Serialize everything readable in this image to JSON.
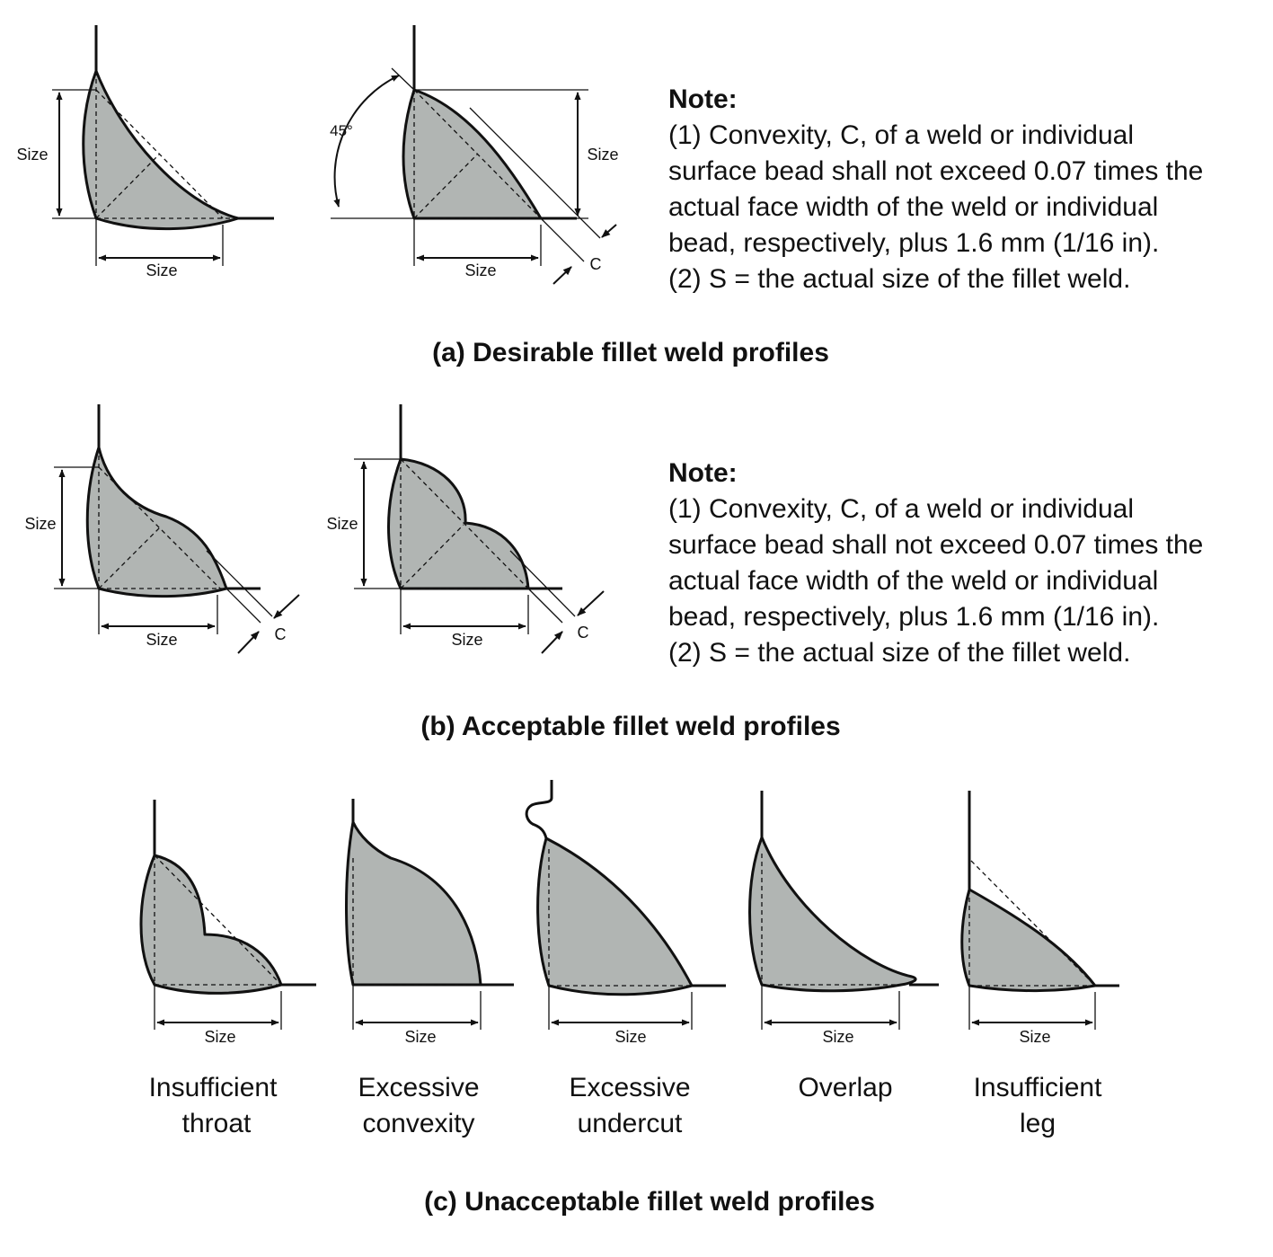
{
  "dimension_label": "Size",
  "convexity_label": "C",
  "angle_label": "45°",
  "notes": [
    {
      "title": "Note:",
      "lines": [
        "(1) Convexity, C, of a weld or individual",
        "surface bead shall not exceed 0.07 times the",
        "actual face width of the weld or individual",
        "bead, respectively, plus 1.6 mm (1/16 in).",
        "(2) S = the actual size of the fillet weld."
      ]
    },
    {
      "title": "Note:",
      "lines": [
        "(1) Convexity, C, of a weld or individual",
        "surface bead shall not exceed 0.07 times the",
        "actual face width of the weld or individual",
        "bead, respectively, plus 1.6 mm (1/16 in).",
        "(2) S = the actual size of the fillet weld."
      ]
    }
  ],
  "captions": {
    "a": "(a) Desirable fillet weld profiles",
    "b": "(b) Acceptable fillet weld profiles",
    "c": "(c) Unacceptable fillet weld profiles"
  },
  "unacceptable_profiles": [
    {
      "line1": "Insufficient",
      "line2": "throat"
    },
    {
      "line1": "Excessive",
      "line2": "convexity"
    },
    {
      "line1": "Excessive",
      "line2": "undercut"
    },
    {
      "line1": "Overlap",
      "line2": ""
    },
    {
      "line1": "Insufficient",
      "line2": "leg"
    }
  ]
}
